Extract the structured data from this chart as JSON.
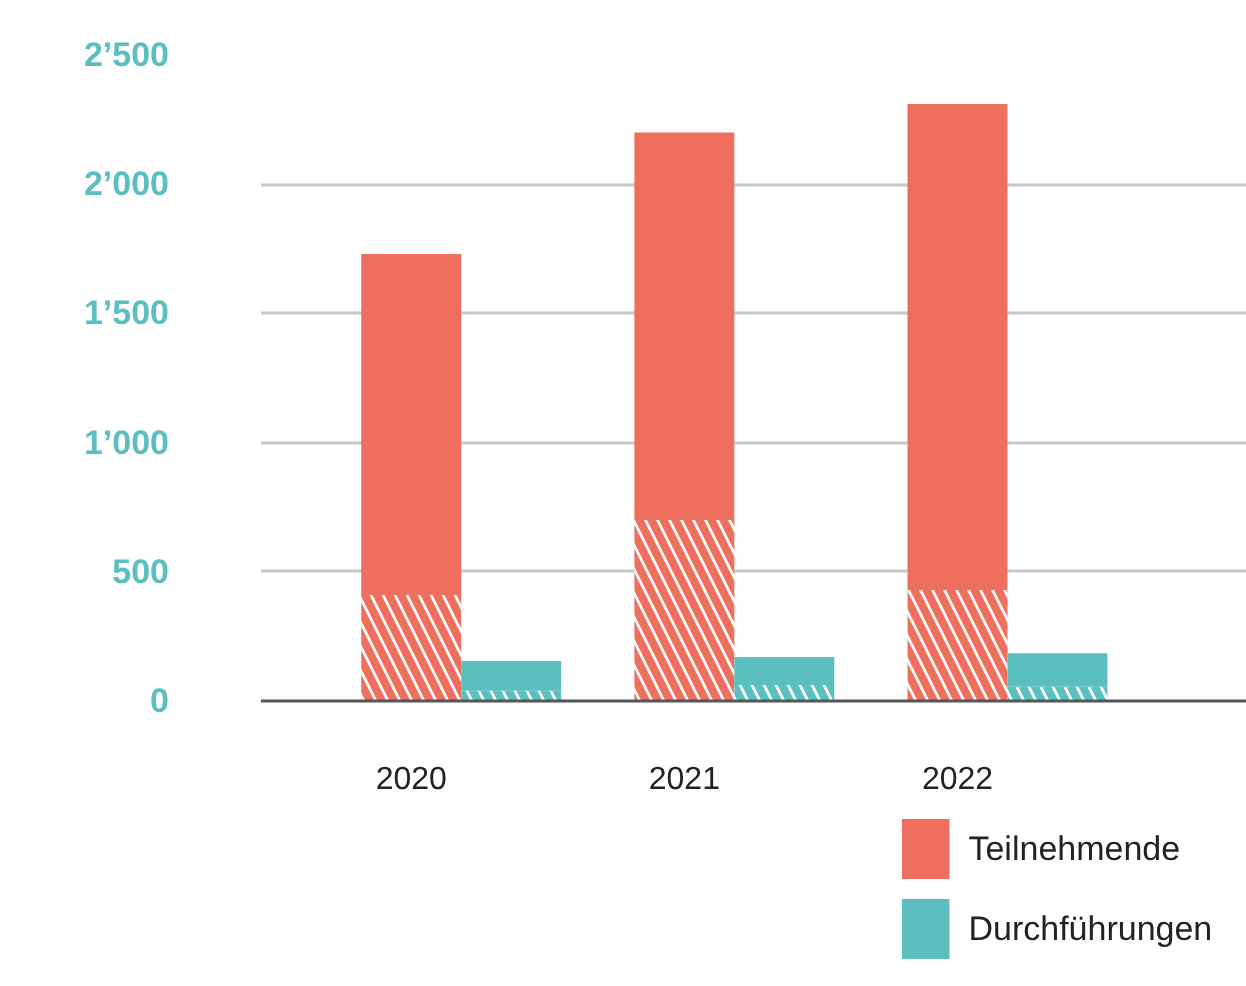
{
  "chart_data": {
    "type": "bar",
    "stacked": true,
    "categories": [
      "2020",
      null,
      "2021",
      null,
      "2022",
      null
    ],
    "series": [
      {
        "color": "#ee6f5e",
        "values": [
          410,
          null,
          700,
          null,
          430,
          null
        ]
      },
      {
        "name": "Teilnehmende",
        "color": "#ee6f5e",
        "values": [
          1320,
          null,
          1500,
          null,
          1880,
          null
        ]
      },
      {
        "color": "#5bbfbf",
        "values": [
          null,
          40,
          null,
          62,
          null,
          55
        ]
      },
      {
        "name": "Durchführungen",
        "color": "#5bbfbf",
        "values": [
          null,
          115,
          null,
          108,
          null,
          130
        ]
      }
    ],
    "ylim": [
      0,
      2500
    ],
    "yticks": [
      0,
      500,
      {
        "value": 1000,
        "label": "1’000"
      },
      {
        "value": 1500,
        "label": "1’500"
      },
      {
        "value": 2000,
        "label": "2’000"
      },
      {
        "value": 2500,
        "label": "2’500"
      }
    ],
    "grid": "y",
    "legend": "bottom right"
  }
}
